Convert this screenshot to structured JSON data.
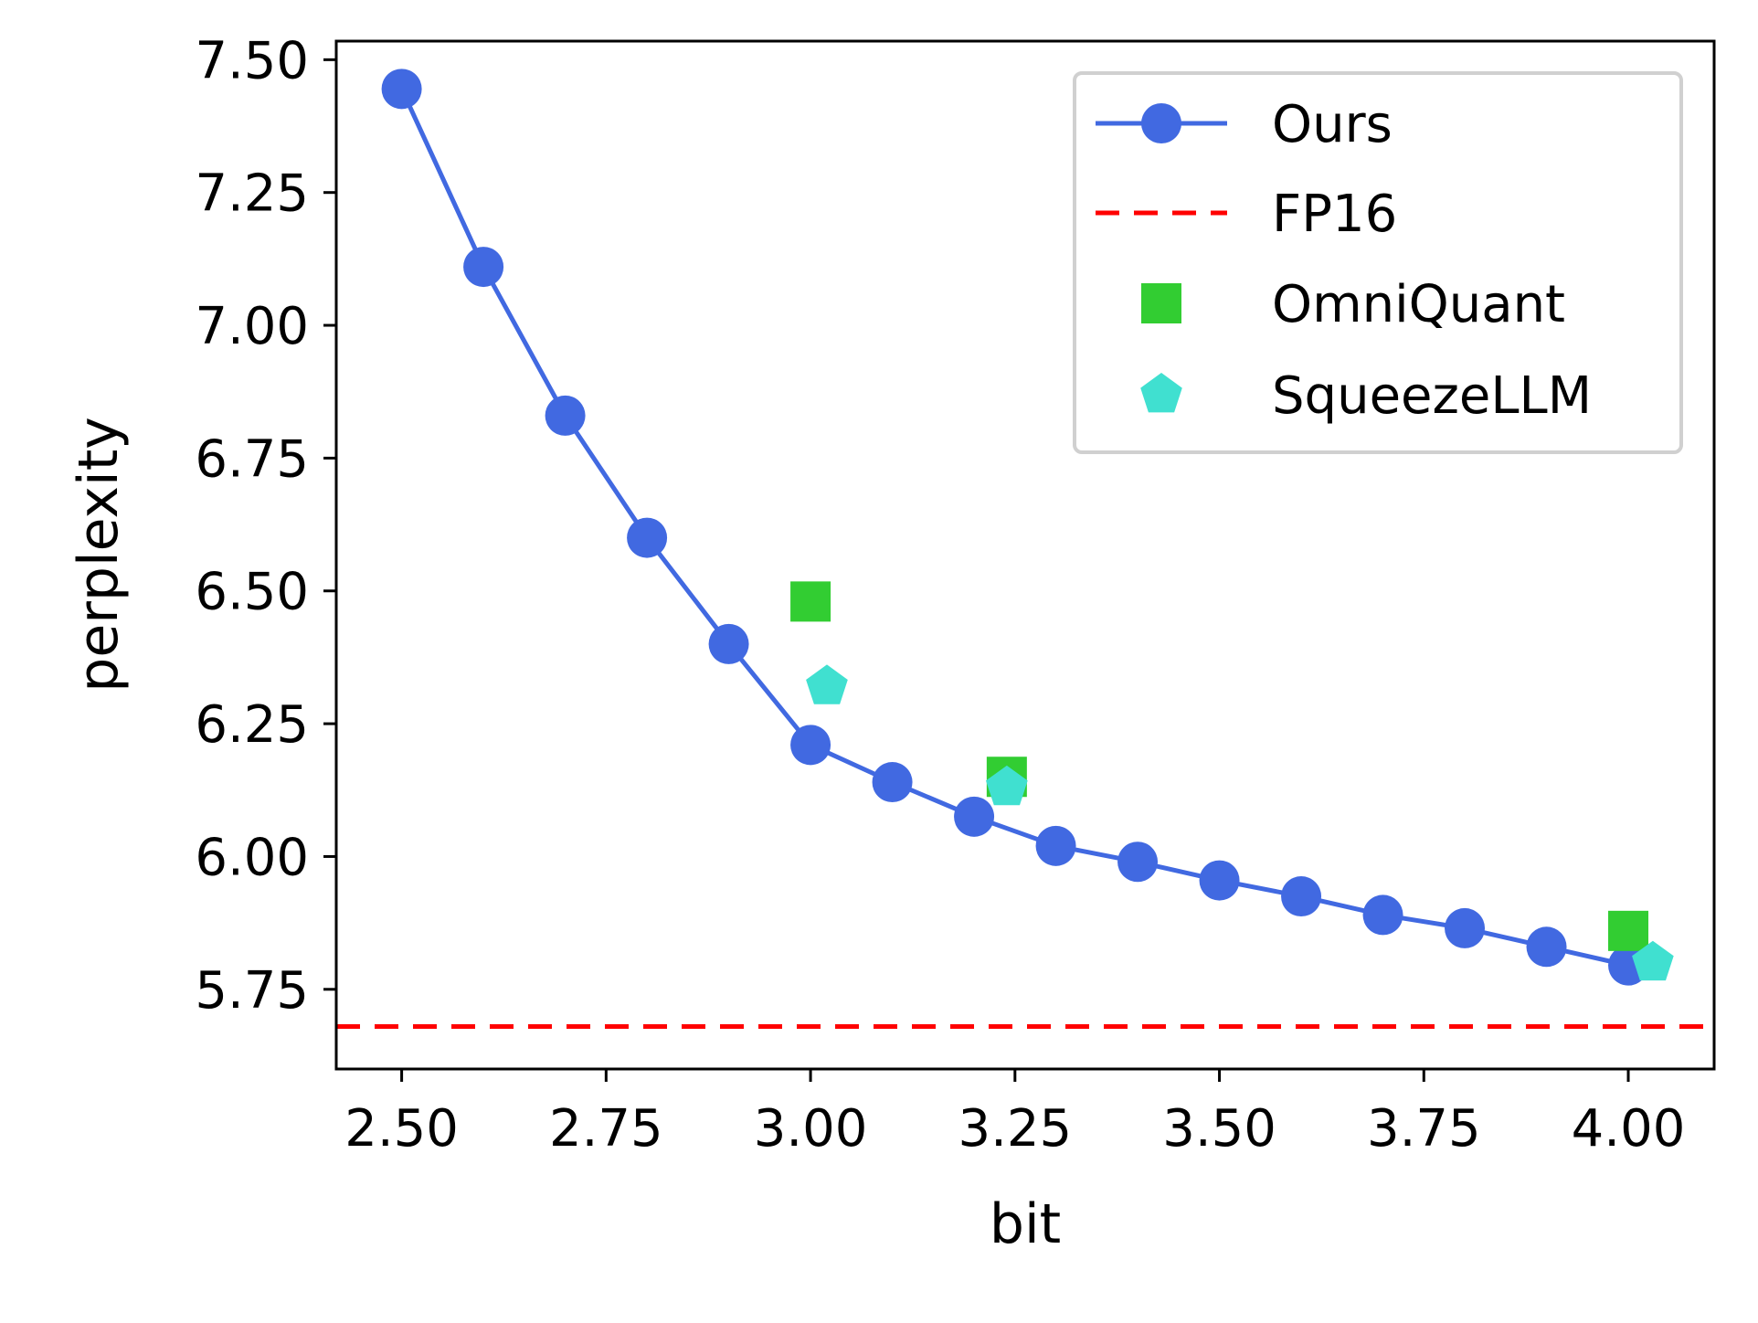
{
  "chart_data": {
    "type": "line",
    "title": "",
    "xlabel": "bit",
    "ylabel": "perplexity",
    "xlim": [
      2.42,
      4.105
    ],
    "ylim": [
      5.6,
      7.535
    ],
    "x_ticks": [
      {
        "value": 2.5,
        "label": "2.50"
      },
      {
        "value": 2.75,
        "label": "2.75"
      },
      {
        "value": 3.0,
        "label": "3.00"
      },
      {
        "value": 3.25,
        "label": "3.25"
      },
      {
        "value": 3.5,
        "label": "3.50"
      },
      {
        "value": 3.75,
        "label": "3.75"
      },
      {
        "value": 4.0,
        "label": "4.00"
      }
    ],
    "y_ticks": [
      {
        "value": 5.75,
        "label": "5.75"
      },
      {
        "value": 6.0,
        "label": "6.00"
      },
      {
        "value": 6.25,
        "label": "6.25"
      },
      {
        "value": 6.5,
        "label": "6.50"
      },
      {
        "value": 6.75,
        "label": "6.75"
      },
      {
        "value": 7.0,
        "label": "7.00"
      },
      {
        "value": 7.25,
        "label": "7.25"
      },
      {
        "value": 7.5,
        "label": "7.50"
      }
    ],
    "grid": false,
    "legend_position": "top-right",
    "series": [
      {
        "name": "Ours",
        "kind": "line-marker",
        "color": "#4169e1",
        "marker": "circle",
        "x": [
          2.5,
          2.6,
          2.7,
          2.8,
          2.9,
          3.0,
          3.1,
          3.2,
          3.3,
          3.4,
          3.5,
          3.6,
          3.7,
          3.8,
          3.9,
          4.0
        ],
        "y": [
          7.445,
          7.11,
          6.83,
          6.6,
          6.4,
          6.21,
          6.14,
          6.075,
          6.02,
          5.99,
          5.955,
          5.925,
          5.89,
          5.865,
          5.83,
          5.795
        ]
      },
      {
        "name": "FP16",
        "kind": "hline",
        "color": "#ff0000",
        "style": "dashed",
        "y": 5.68
      },
      {
        "name": "OmniQuant",
        "kind": "scatter",
        "color": "#32cd32",
        "marker": "square",
        "x": [
          3.0,
          3.24,
          4.0
        ],
        "y": [
          6.48,
          6.15,
          5.86
        ]
      },
      {
        "name": "SqueezeLLM",
        "kind": "scatter",
        "color": "#40e0d0",
        "marker": "pentagon",
        "x": [
          3.02,
          3.24,
          4.03
        ],
        "y": [
          6.32,
          6.13,
          5.8
        ]
      }
    ]
  }
}
